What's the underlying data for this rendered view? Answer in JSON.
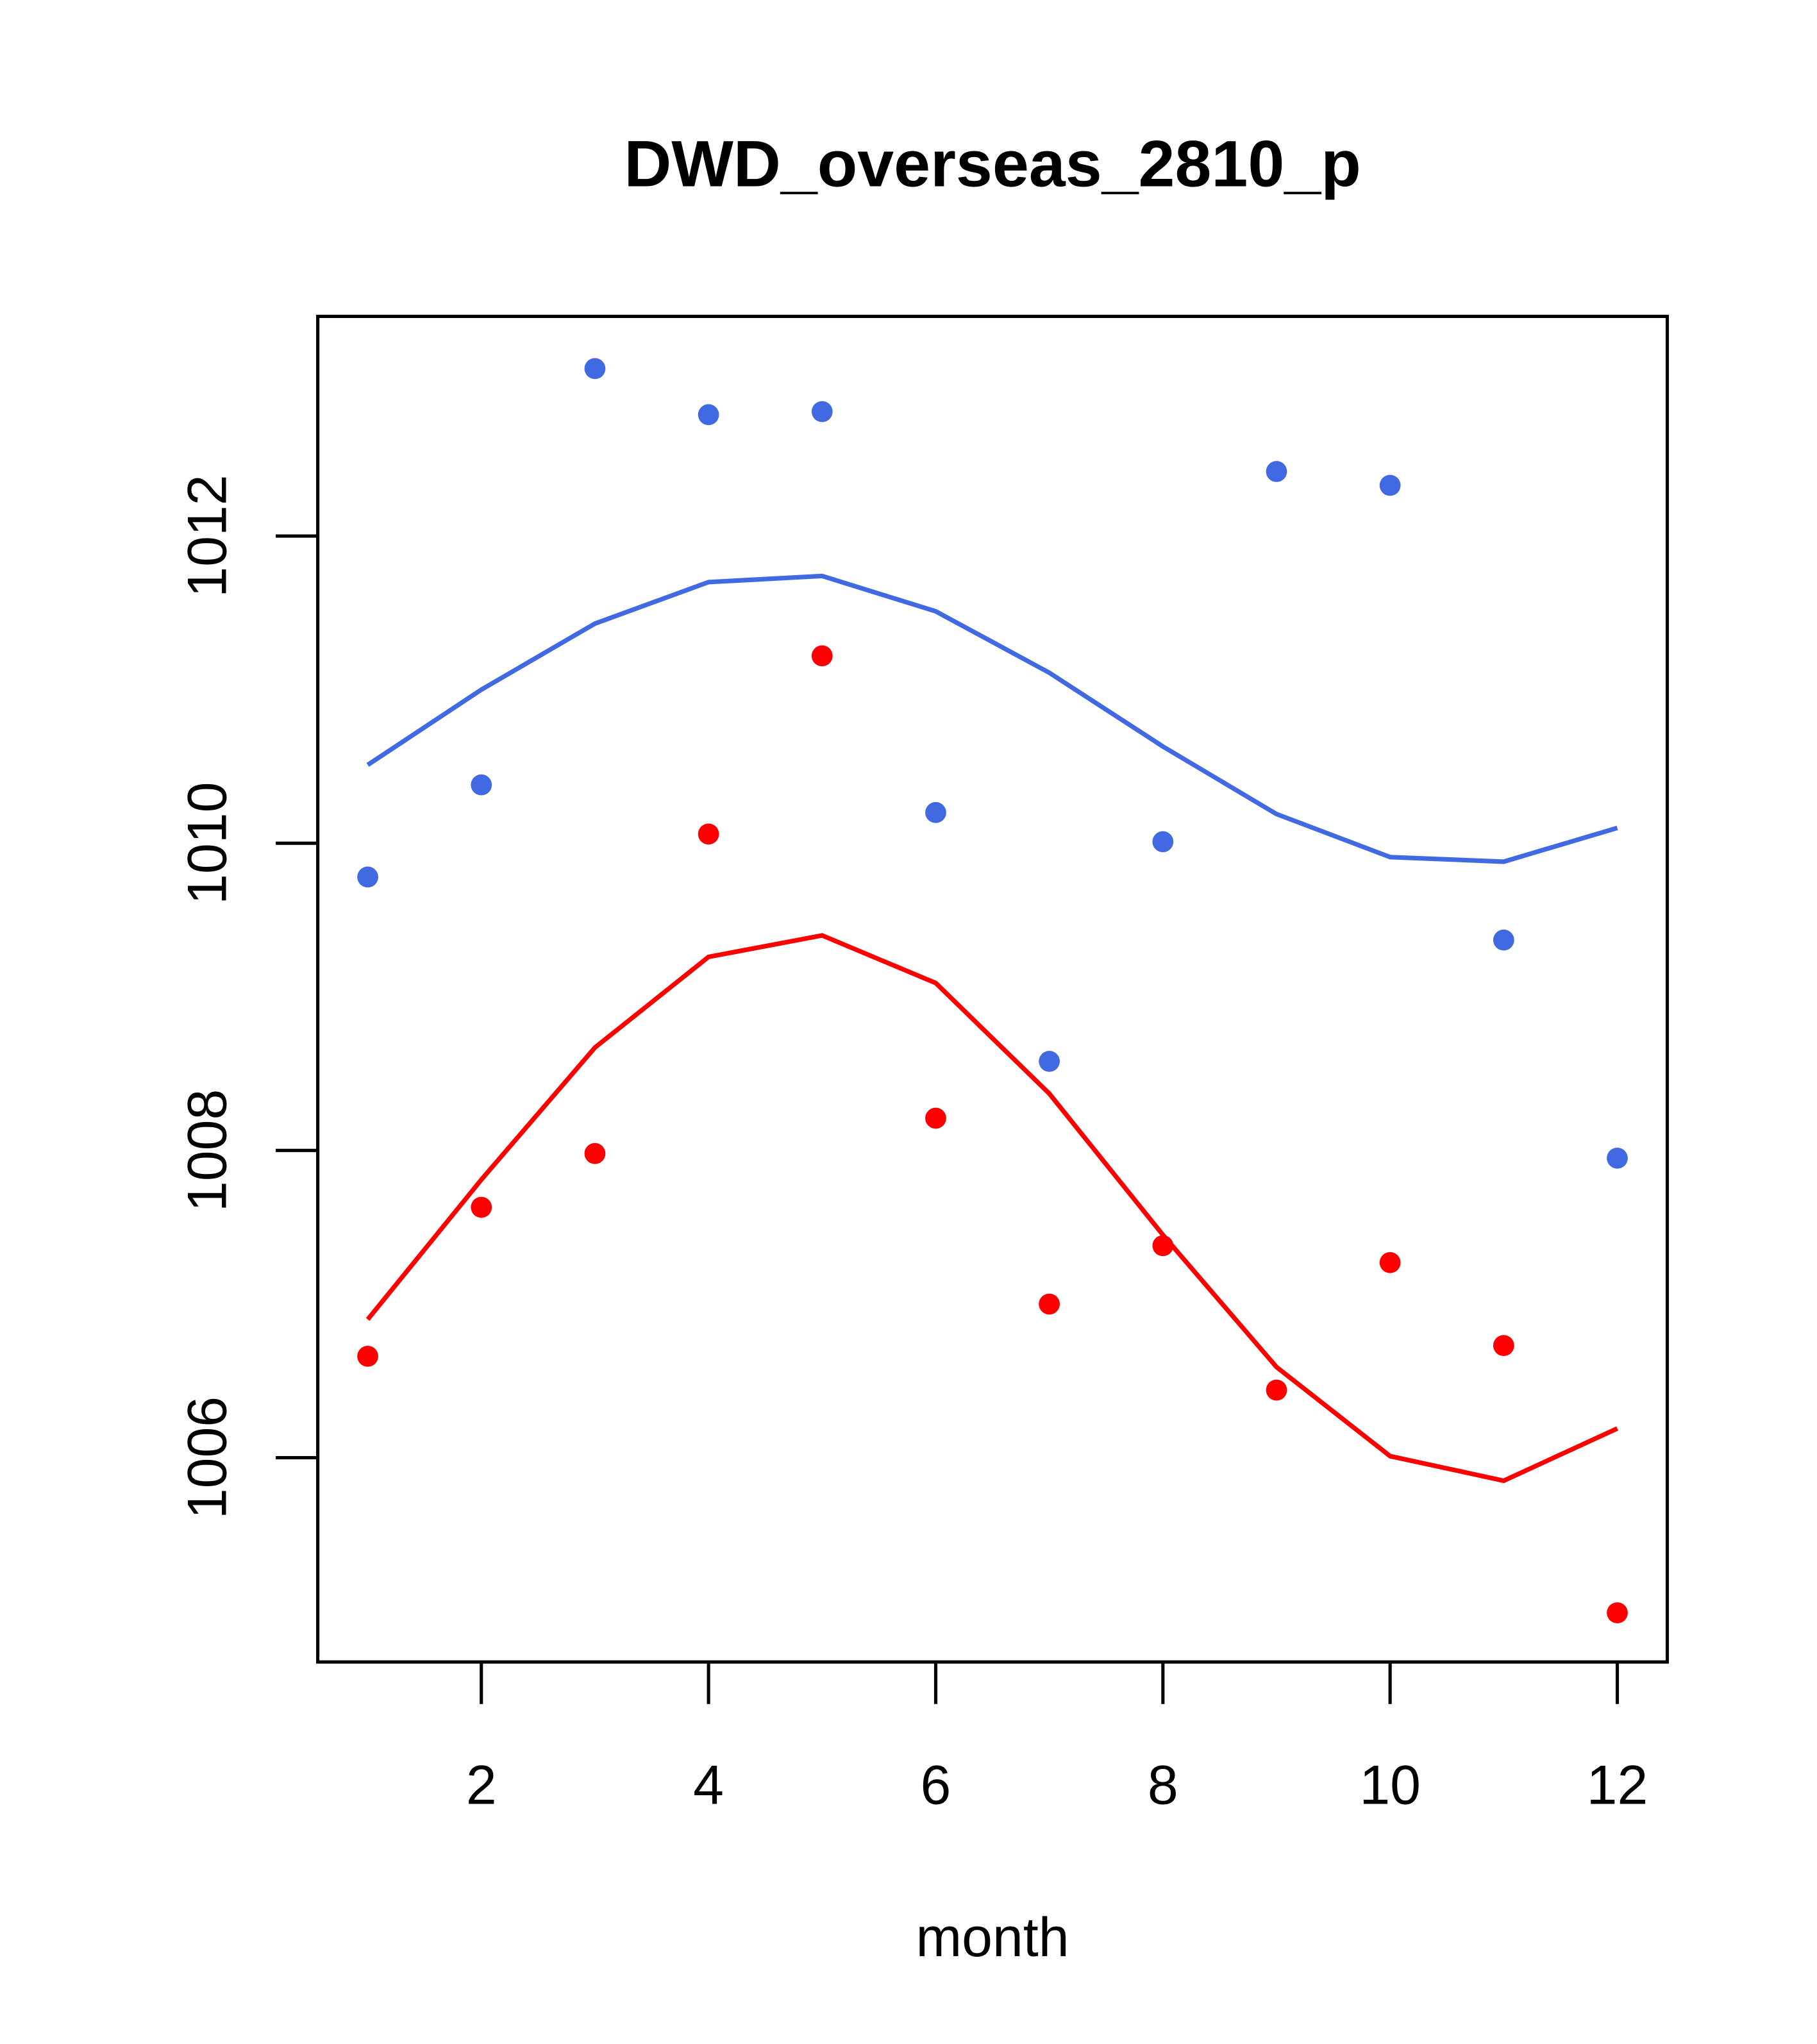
{
  "chart_data": {
    "type": "scatter",
    "title": "DWD_overseas_2810_p",
    "xlabel": "month",
    "ylabel": "",
    "xlim": [
      0.56,
      12.44
    ],
    "ylim": [
      1004.67,
      1013.43
    ],
    "xticks": [
      2,
      4,
      6,
      8,
      10,
      12
    ],
    "xtick_labels": [
      "2",
      "4",
      "6",
      "8",
      "10",
      "12"
    ],
    "yticks": [
      1006,
      1008,
      1010,
      1012
    ],
    "ytick_labels": [
      "1006",
      "1008",
      "1010",
      "1012"
    ],
    "grid": false,
    "x": [
      1,
      2,
      3,
      4,
      5,
      6,
      7,
      8,
      9,
      10,
      11,
      12
    ],
    "series": [
      {
        "name": "blue points",
        "kind": "points",
        "color": "#4169E1",
        "values": [
          1009.78,
          1010.38,
          1013.09,
          1012.79,
          1012.81,
          1010.2,
          1008.58,
          1010.01,
          1012.42,
          1012.33,
          1009.37,
          1007.95
        ]
      },
      {
        "name": "blue line",
        "kind": "line",
        "color": "#4169E1",
        "values": [
          1010.51,
          1011.0,
          1011.43,
          1011.7,
          1011.74,
          1011.51,
          1011.11,
          1010.63,
          1010.19,
          1009.91,
          1009.88,
          1010.1
        ]
      },
      {
        "name": "red points",
        "kind": "points",
        "color": "#FF0000",
        "values": [
          1006.66,
          1007.63,
          1007.98,
          1010.06,
          1011.22,
          1008.21,
          1007.0,
          1007.38,
          1006.44,
          1007.27,
          1006.73,
          1004.99
        ]
      },
      {
        "name": "red line",
        "kind": "line",
        "color": "#FF0000",
        "values": [
          1006.9,
          1007.81,
          1008.67,
          1009.26,
          1009.4,
          1009.09,
          1008.37,
          1007.45,
          1006.59,
          1006.01,
          1005.85,
          1006.19
        ]
      }
    ]
  }
}
